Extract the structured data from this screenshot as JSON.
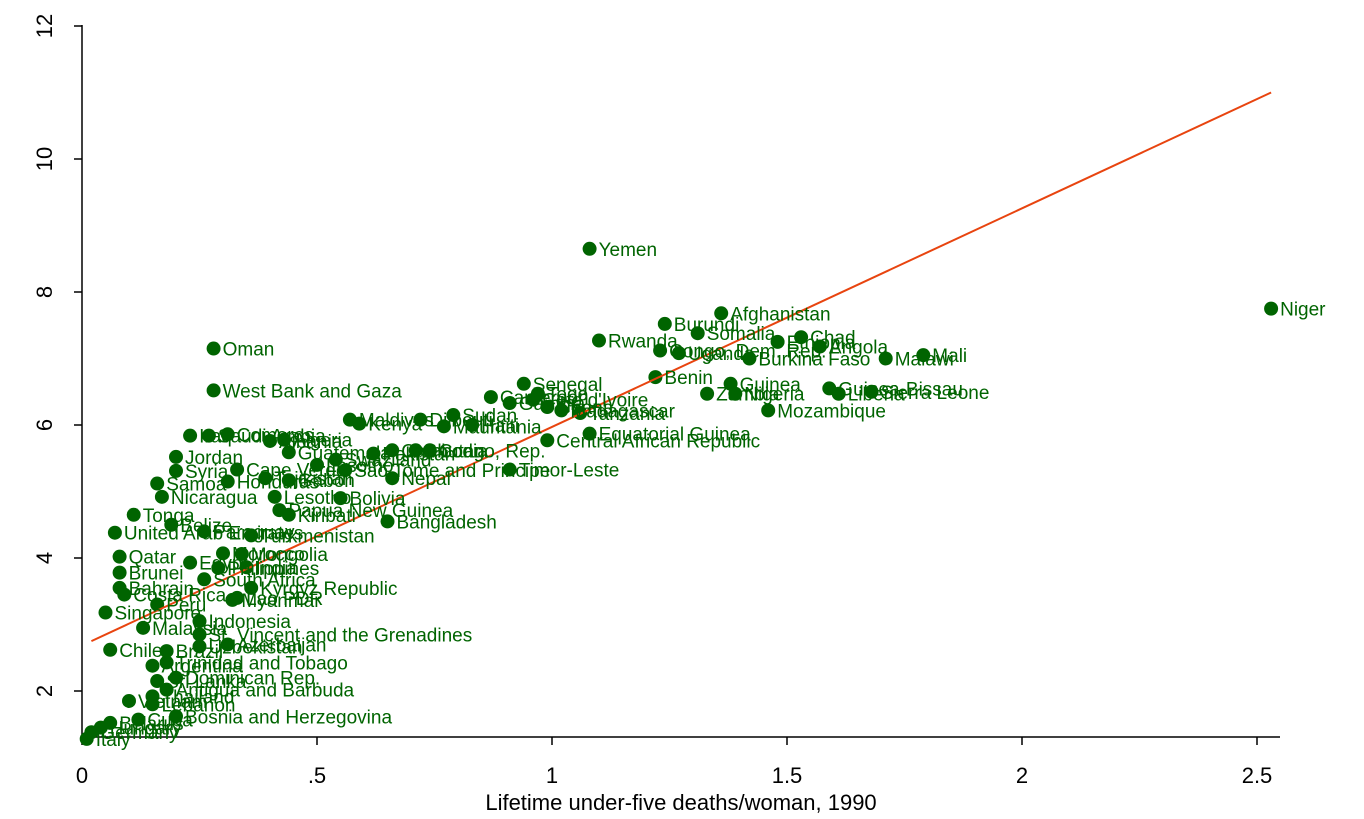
{
  "chart_data": {
    "type": "scatter",
    "title": "",
    "xlabel": "Lifetime under-five deaths/woman, 1990",
    "ylabel": "",
    "xlim": [
      0,
      2.55
    ],
    "ylim": [
      1.3,
      12
    ],
    "xticks": [
      0,
      0.5,
      1,
      1.5,
      2,
      2.5
    ],
    "xtick_labels": [
      "0",
      ".5",
      "1",
      "1.5",
      "2",
      "2.5"
    ],
    "yticks": [
      2,
      4,
      6,
      8,
      10,
      12
    ],
    "ytick_labels": [
      "2",
      "4",
      "6",
      "8",
      "10",
      "12"
    ],
    "grid": false,
    "legend": "none",
    "colors": {
      "points": "#006400",
      "fit_line": "#e8440f",
      "axes": "#000000"
    },
    "fit_line": {
      "x": [
        0.02,
        2.53
      ],
      "y": [
        2.75,
        11.0
      ]
    },
    "points": [
      {
        "x": 2.53,
        "y": 7.75,
        "label": "Niger"
      },
      {
        "x": 1.08,
        "y": 8.65,
        "label": "Yemen"
      },
      {
        "x": 0.28,
        "y": 7.15,
        "label": "Oman"
      },
      {
        "x": 0.28,
        "y": 6.52,
        "label": "West Bank and Gaza"
      },
      {
        "x": 1.36,
        "y": 7.68,
        "label": "Afghanistan"
      },
      {
        "x": 1.24,
        "y": 7.52,
        "label": "Burundi"
      },
      {
        "x": 1.31,
        "y": 7.38,
        "label": "Somalia"
      },
      {
        "x": 1.53,
        "y": 7.32,
        "label": "Chad"
      },
      {
        "x": 1.1,
        "y": 7.27,
        "label": "Rwanda"
      },
      {
        "x": 1.48,
        "y": 7.25,
        "label": "Ethiopia"
      },
      {
        "x": 1.57,
        "y": 7.18,
        "label": "Angola"
      },
      {
        "x": 1.23,
        "y": 7.12,
        "label": "Congo, Dem. Rep."
      },
      {
        "x": 1.79,
        "y": 7.05,
        "label": "Mali"
      },
      {
        "x": 1.27,
        "y": 7.08,
        "label": "Uganda"
      },
      {
        "x": 1.42,
        "y": 7.0,
        "label": "Burkina Faso"
      },
      {
        "x": 1.71,
        "y": 7.0,
        "label": "Malawi"
      },
      {
        "x": 1.22,
        "y": 6.72,
        "label": "Benin"
      },
      {
        "x": 1.38,
        "y": 6.62,
        "label": "Guinea"
      },
      {
        "x": 1.59,
        "y": 6.55,
        "label": "Guinea-Bissau"
      },
      {
        "x": 1.33,
        "y": 6.47,
        "label": "Zambia"
      },
      {
        "x": 1.39,
        "y": 6.47,
        "label": "Nigeria"
      },
      {
        "x": 1.61,
        "y": 6.47,
        "label": "Liberia"
      },
      {
        "x": 1.68,
        "y": 6.5,
        "label": "Sierra Leone"
      },
      {
        "x": 1.46,
        "y": 6.22,
        "label": "Mozambique"
      },
      {
        "x": 0.94,
        "y": 6.62,
        "label": "Senegal"
      },
      {
        "x": 0.87,
        "y": 6.42,
        "label": "Cameroon"
      },
      {
        "x": 0.97,
        "y": 6.47,
        "label": "Togo"
      },
      {
        "x": 0.96,
        "y": 6.38,
        "label": "Cote d'Ivoire"
      },
      {
        "x": 0.91,
        "y": 6.33,
        "label": "Gambia"
      },
      {
        "x": 0.99,
        "y": 6.27,
        "label": "Ghana"
      },
      {
        "x": 1.02,
        "y": 6.22,
        "label": "Madagascar"
      },
      {
        "x": 1.06,
        "y": 6.18,
        "label": "Tanzania"
      },
      {
        "x": 0.79,
        "y": 6.15,
        "label": "Sudan"
      },
      {
        "x": 0.57,
        "y": 6.08,
        "label": "Maldives"
      },
      {
        "x": 0.72,
        "y": 6.08,
        "label": "Djibouti"
      },
      {
        "x": 0.59,
        "y": 6.02,
        "label": "Kenya"
      },
      {
        "x": 0.77,
        "y": 5.98,
        "label": "Mauritania"
      },
      {
        "x": 0.83,
        "y": 6.0,
        "label": "Haiti"
      },
      {
        "x": 1.08,
        "y": 5.87,
        "label": "Equatorial Guinea"
      },
      {
        "x": 0.99,
        "y": 5.77,
        "label": "Central African Republic"
      },
      {
        "x": 0.23,
        "y": 5.84,
        "label": "Iraq"
      },
      {
        "x": 0.27,
        "y": 5.84,
        "label": "Saudi Arabia"
      },
      {
        "x": 0.31,
        "y": 5.86,
        "label": "Comoros"
      },
      {
        "x": 0.4,
        "y": 5.76,
        "label": "Albania"
      },
      {
        "x": 0.43,
        "y": 5.78,
        "label": "Algeria"
      },
      {
        "x": 0.44,
        "y": 5.59,
        "label": "Guatemala"
      },
      {
        "x": 0.66,
        "y": 5.62,
        "label": "Cambodia"
      },
      {
        "x": 0.71,
        "y": 5.62,
        "label": "Bhutan"
      },
      {
        "x": 0.74,
        "y": 5.62,
        "label": "Congo, Rep."
      },
      {
        "x": 0.62,
        "y": 5.57,
        "label": "Pakistan"
      },
      {
        "x": 0.54,
        "y": 5.48,
        "label": "Swaziland"
      },
      {
        "x": 0.2,
        "y": 5.52,
        "label": "Jordan"
      },
      {
        "x": 0.2,
        "y": 5.31,
        "label": "Syria"
      },
      {
        "x": 0.33,
        "y": 5.33,
        "label": "Cape Verde"
      },
      {
        "x": 0.5,
        "y": 5.4,
        "label": "Lesotho"
      },
      {
        "x": 0.56,
        "y": 5.32,
        "label": "Sao Tome and Principe"
      },
      {
        "x": 0.91,
        "y": 5.33,
        "label": "Timor-Leste"
      },
      {
        "x": 0.66,
        "y": 5.2,
        "label": "Nepal"
      },
      {
        "x": 0.16,
        "y": 5.12,
        "label": "Samoa"
      },
      {
        "x": 0.31,
        "y": 5.15,
        "label": "Honduras"
      },
      {
        "x": 0.39,
        "y": 5.2,
        "label": "Tajikistan"
      },
      {
        "x": 0.44,
        "y": 5.17,
        "label": "Gabon"
      },
      {
        "x": 0.17,
        "y": 4.92,
        "label": "Nicaragua"
      },
      {
        "x": 0.41,
        "y": 4.92,
        "label": "Lesotho"
      },
      {
        "x": 0.55,
        "y": 4.9,
        "label": "Bolivia"
      },
      {
        "x": 0.42,
        "y": 4.72,
        "label": "Papua New Guinea"
      },
      {
        "x": 0.44,
        "y": 4.65,
        "label": "Kiribati"
      },
      {
        "x": 0.65,
        "y": 4.55,
        "label": "Bangladesh"
      },
      {
        "x": 0.11,
        "y": 4.65,
        "label": "Tonga"
      },
      {
        "x": 0.19,
        "y": 4.5,
        "label": "Belize"
      },
      {
        "x": 0.07,
        "y": 4.38,
        "label": "United Arab Emirates"
      },
      {
        "x": 0.26,
        "y": 4.4,
        "label": "Paraguay"
      },
      {
        "x": 0.36,
        "y": 4.34,
        "label": "Turkmenistan"
      },
      {
        "x": 0.08,
        "y": 4.02,
        "label": "Qatar"
      },
      {
        "x": 0.3,
        "y": 4.07,
        "label": "Morocco"
      },
      {
        "x": 0.34,
        "y": 4.06,
        "label": "Mongolia"
      },
      {
        "x": 0.23,
        "y": 3.93,
        "label": "Egypt"
      },
      {
        "x": 0.29,
        "y": 3.85,
        "label": "Philippines"
      },
      {
        "x": 0.35,
        "y": 3.86,
        "label": "India"
      },
      {
        "x": 0.08,
        "y": 3.78,
        "label": "Brunei"
      },
      {
        "x": 0.26,
        "y": 3.68,
        "label": "South Africa"
      },
      {
        "x": 0.36,
        "y": 3.55,
        "label": "Kyrgyz Republic"
      },
      {
        "x": 0.08,
        "y": 3.55,
        "label": "Bahrain"
      },
      {
        "x": 0.09,
        "y": 3.45,
        "label": "Costa Rica"
      },
      {
        "x": 0.33,
        "y": 3.4,
        "label": "Lao PDR"
      },
      {
        "x": 0.32,
        "y": 3.37,
        "label": "Myanmar"
      },
      {
        "x": 0.05,
        "y": 3.18,
        "label": "Singapore"
      },
      {
        "x": 0.16,
        "y": 3.3,
        "label": "Peru"
      },
      {
        "x": 0.25,
        "y": 3.05,
        "label": "Indonesia"
      },
      {
        "x": 0.13,
        "y": 2.95,
        "label": "Malaysia"
      },
      {
        "x": 0.25,
        "y": 2.85,
        "label": "St. Vincent and the Grenadines"
      },
      {
        "x": 0.31,
        "y": 2.7,
        "label": "Azerbaijan"
      },
      {
        "x": 0.25,
        "y": 2.67,
        "label": "Uzbekistan"
      },
      {
        "x": 0.06,
        "y": 2.62,
        "label": "Chile"
      },
      {
        "x": 0.18,
        "y": 2.6,
        "label": "Brazil"
      },
      {
        "x": 0.18,
        "y": 2.43,
        "label": "Trinidad and Tobago"
      },
      {
        "x": 0.15,
        "y": 2.38,
        "label": "Argentina"
      },
      {
        "x": 0.2,
        "y": 2.2,
        "label": "Dominican Rep."
      },
      {
        "x": 0.16,
        "y": 2.15,
        "label": "Sri Lanka"
      },
      {
        "x": 0.18,
        "y": 2.02,
        "label": "Antigua and Barbuda"
      },
      {
        "x": 0.15,
        "y": 1.92,
        "label": "Thailand"
      },
      {
        "x": 0.1,
        "y": 1.85,
        "label": "Vietnam"
      },
      {
        "x": 0.15,
        "y": 1.8,
        "label": "Lebanon"
      },
      {
        "x": 0.2,
        "y": 1.62,
        "label": "Bosnia and Herzegovina"
      },
      {
        "x": 0.12,
        "y": 1.57,
        "label": "Cuba"
      },
      {
        "x": 0.06,
        "y": 1.52,
        "label": "Belarus"
      },
      {
        "x": 0.04,
        "y": 1.45,
        "label": "Hungary"
      },
      {
        "x": 0.02,
        "y": 1.38,
        "label": "Germany"
      },
      {
        "x": 0.01,
        "y": 1.28,
        "label": "Italy"
      }
    ]
  }
}
